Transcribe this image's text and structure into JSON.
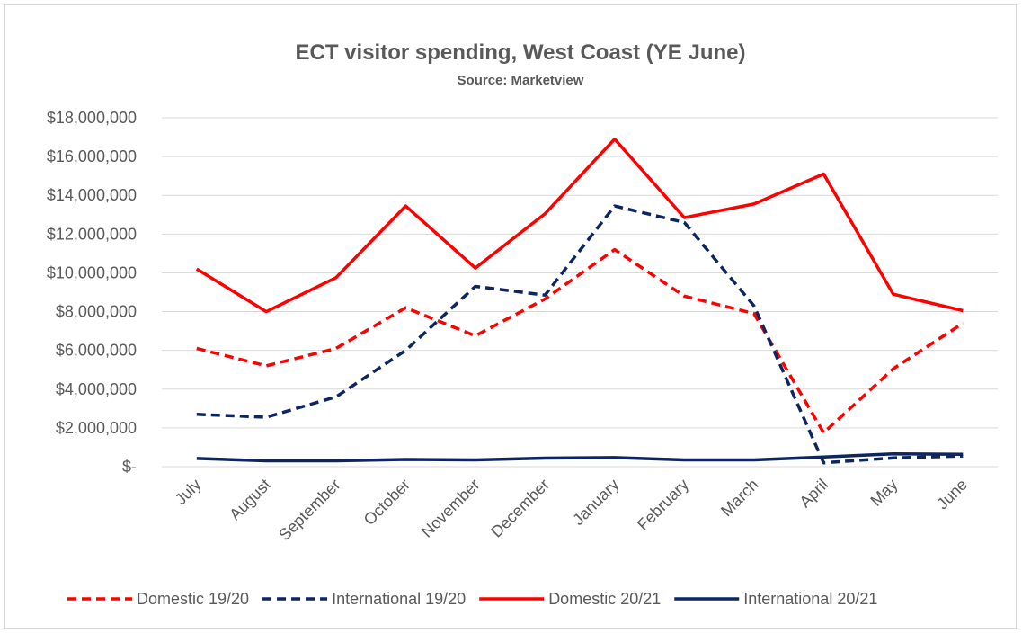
{
  "chart_data": {
    "type": "line",
    "title": "ECT visitor spending, West Coast (YE June)",
    "subtitle": "Source: Marketview",
    "xlabel": "",
    "ylabel": "",
    "categories": [
      "July",
      "August",
      "September",
      "October",
      "November",
      "December",
      "January",
      "February",
      "March",
      "April",
      "May",
      "June"
    ],
    "y_tick_labels": [
      "$-",
      "$2,000,000",
      "$4,000,000",
      "$6,000,000",
      "$8,000,000",
      "$10,000,000",
      "$12,000,000",
      "$14,000,000",
      "$16,000,000",
      "$18,000,000"
    ],
    "ylim": [
      0,
      18000000
    ],
    "y_step": 2000000,
    "grid": true,
    "legend_position": "bottom",
    "series": [
      {
        "name": "Domestic 19/20",
        "color": "#ff0000",
        "dash": "dashed",
        "values": [
          6100000,
          5200000,
          6100000,
          8200000,
          6750000,
          8650000,
          11200000,
          8800000,
          7900000,
          1750000,
          5050000,
          7400000
        ]
      },
      {
        "name": "International 19/20",
        "color": "#0d2660",
        "dash": "dashed",
        "values": [
          2700000,
          2550000,
          3600000,
          6000000,
          9300000,
          8850000,
          13450000,
          12600000,
          8300000,
          200000,
          450000,
          550000
        ]
      },
      {
        "name": "Domestic 20/21",
        "color": "#ff0000",
        "dash": "solid",
        "values": [
          10200000,
          8000000,
          9750000,
          13450000,
          10250000,
          13050000,
          16900000,
          12850000,
          13550000,
          15100000,
          8900000,
          8050000
        ]
      },
      {
        "name": "International 20/21",
        "color": "#0d2660",
        "dash": "solid",
        "values": [
          420000,
          300000,
          300000,
          370000,
          350000,
          440000,
          470000,
          350000,
          350000,
          500000,
          660000,
          640000
        ]
      }
    ]
  }
}
